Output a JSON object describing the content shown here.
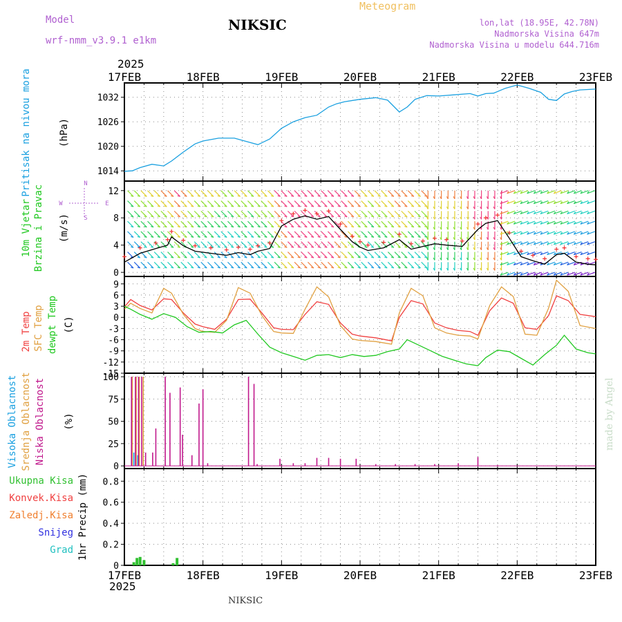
{
  "header": {
    "model_label": "Model",
    "model_name": "wrf-nmm_v3.9.1  e1km",
    "station": "NIKSIC",
    "title": "Meteogram",
    "coords": "lon,lat (18.95E, 42.78N)",
    "elevation": "Nadmorska Visina 647m",
    "model_elevation": "Nadmorska Visina u modelu 644.716m",
    "footer_station": "NIKSIC",
    "credit": "made by Angel",
    "year": "2025"
  },
  "colors": {
    "pressure": "#1aa0e0",
    "t2m": "#f04040",
    "tsfc": "#e0a040",
    "dewpoint": "#20c820",
    "high_cloud": "#1aa0e0",
    "mid_cloud": "#e0a040",
    "low_cloud": "#c0188c",
    "precip": "#30c030",
    "frame": "#000000",
    "grid": "#888888"
  },
  "chart_data": [
    {
      "type": "line",
      "panel": "pressure",
      "ylabel_lines": [
        "Pritisak na nivou mora",
        "(hPa)"
      ],
      "x_ticks": [
        "17FEB",
        "18FEB",
        "19FEB",
        "20FEB",
        "21FEB",
        "22FEB",
        "23FEB"
      ],
      "y_ticks": [
        1014,
        1020,
        1026,
        1032
      ],
      "ylim": [
        1011.5,
        1035.5
      ],
      "grid": true,
      "series": [
        {
          "x": [
            0,
            0.1,
            0.2,
            0.35,
            0.5,
            0.6,
            0.75,
            0.9,
            1.0,
            1.2,
            1.4,
            1.55,
            1.7,
            1.85,
            2.0,
            2.15,
            2.3,
            2.45,
            2.6,
            2.7,
            2.8,
            3.0,
            3.2,
            3.35,
            3.5,
            3.6,
            3.7,
            3.85,
            4.0,
            4.2,
            4.4,
            4.5,
            4.6,
            4.7,
            4.85,
            5.0,
            5.15,
            5.3,
            5.4,
            5.5,
            5.6,
            5.7,
            5.8,
            6.0
          ],
          "y": [
            1013.9,
            1014.0,
            1014.8,
            1015.6,
            1015.2,
            1016.4,
            1018.6,
            1020.6,
            1021.3,
            1022.0,
            1022.0,
            1021.2,
            1020.4,
            1021.8,
            1024.4,
            1026.0,
            1027.0,
            1027.6,
            1029.6,
            1030.4,
            1030.9,
            1031.5,
            1031.9,
            1031.3,
            1028.4,
            1029.6,
            1031.5,
            1032.4,
            1032.3,
            1032.6,
            1032.9,
            1032.3,
            1032.9,
            1033.0,
            1034.2,
            1035.0,
            1034.2,
            1033.2,
            1031.5,
            1031.2,
            1032.8,
            1033.4,
            1033.8,
            1034.0
          ]
        }
      ]
    },
    {
      "type": "line",
      "panel": "wind",
      "ylabel_lines": [
        "10m Vjetar",
        "Brzina i Pravac",
        "(m/s)"
      ],
      "compass_labels": [
        "N",
        "S",
        "W",
        "E"
      ],
      "y_ticks": [
        0,
        4,
        8,
        12
      ],
      "ylim": [
        -0.6,
        13.4
      ],
      "grid": true,
      "series": [
        {
          "name": "",
          "x": [
            0,
            0.2,
            0.4,
            0.55,
            0.6,
            0.75,
            0.9,
            1.1,
            1.3,
            1.45,
            1.6,
            1.7,
            1.85,
            2.0,
            2.15,
            2.3,
            2.45,
            2.6,
            2.75,
            2.9,
            3.0,
            3.1,
            3.3,
            3.5,
            3.65,
            3.8,
            3.95,
            4.1,
            4.3,
            4.5,
            4.6,
            4.75,
            4.9,
            5.05,
            5.2,
            5.35,
            5.5,
            5.6,
            5.75,
            5.9,
            6.0
          ],
          "y": [
            1.5,
            2.8,
            3.5,
            4.0,
            5.2,
            3.9,
            3.1,
            2.8,
            2.5,
            2.9,
            2.6,
            3.1,
            3.5,
            6.8,
            7.8,
            8.3,
            7.8,
            8.2,
            6.3,
            4.5,
            3.7,
            3.2,
            3.6,
            4.8,
            3.4,
            3.8,
            4.2,
            4.0,
            3.8,
            6.3,
            7.2,
            7.6,
            5.0,
            2.3,
            1.7,
            1.2,
            2.6,
            2.8,
            1.5,
            1.2,
            1.1
          ]
        }
      ]
    },
    {
      "type": "line",
      "panel": "temperature",
      "ylabel_lines": [
        "2m Temp",
        "SFC Temp",
        "dewpt Temp",
        "(C)"
      ],
      "y_ticks": [
        9,
        6,
        3,
        0,
        -3,
        -6,
        -9,
        -12,
        -15
      ],
      "ylim": [
        -15,
        11
      ],
      "grid": true,
      "series": [
        {
          "name": "2m Temp",
          "x": [
            0,
            0.08,
            0.2,
            0.35,
            0.5,
            0.6,
            0.75,
            0.9,
            1.0,
            1.15,
            1.3,
            1.45,
            1.6,
            1.75,
            1.9,
            2.0,
            2.15,
            2.3,
            2.45,
            2.6,
            2.75,
            2.9,
            3.0,
            3.2,
            3.4,
            3.5,
            3.65,
            3.8,
            3.95,
            4.1,
            4.25,
            4.4,
            4.5,
            4.65,
            4.8,
            4.95,
            5.1,
            5.25,
            5.4,
            5.5,
            5.65,
            5.8,
            6.0
          ],
          "y": [
            2.8,
            4.8,
            3.2,
            2.0,
            5.0,
            4.8,
            1.2,
            -1.8,
            -2.5,
            -3.2,
            -0.5,
            4.8,
            4.9,
            1.2,
            -2.8,
            -3.2,
            -3.3,
            0.8,
            4.2,
            3.5,
            -1.5,
            -4.5,
            -5.0,
            -5.5,
            -6.3,
            0.0,
            4.5,
            3.6,
            -1.5,
            -2.8,
            -3.5,
            -3.8,
            -4.8,
            1.8,
            5.2,
            3.8,
            -2.8,
            -3.2,
            0.5,
            5.8,
            4.5,
            0.8,
            0.2
          ]
        },
        {
          "name": "SFC Temp",
          "x": [
            0,
            0.08,
            0.2,
            0.35,
            0.5,
            0.6,
            0.75,
            0.9,
            1.0,
            1.15,
            1.3,
            1.45,
            1.6,
            1.75,
            1.9,
            2.0,
            2.15,
            2.3,
            2.45,
            2.6,
            2.75,
            2.9,
            3.0,
            3.2,
            3.4,
            3.5,
            3.65,
            3.8,
            3.95,
            4.1,
            4.25,
            4.4,
            4.5,
            4.65,
            4.8,
            4.95,
            5.1,
            5.25,
            5.4,
            5.5,
            5.65,
            5.8,
            6.0
          ],
          "y": [
            2.2,
            3.8,
            2.4,
            1.2,
            7.8,
            6.5,
            0.8,
            -3.0,
            -3.8,
            -4.0,
            -0.8,
            8.0,
            6.5,
            0.5,
            -3.8,
            -4.2,
            -4.3,
            2.2,
            8.2,
            5.5,
            -2.2,
            -5.8,
            -6.2,
            -6.5,
            -7.2,
            1.2,
            7.8,
            5.8,
            -2.8,
            -4.2,
            -4.8,
            -5.0,
            -5.8,
            3.2,
            8.2,
            5.6,
            -4.5,
            -4.8,
            2.5,
            10.0,
            7.0,
            -2.2,
            -3.0
          ]
        },
        {
          "name": "dewpt Temp",
          "x": [
            0,
            0.08,
            0.2,
            0.35,
            0.5,
            0.65,
            0.8,
            0.95,
            1.1,
            1.25,
            1.4,
            1.55,
            1.7,
            1.85,
            2.0,
            2.15,
            2.3,
            2.45,
            2.6,
            2.75,
            2.9,
            3.05,
            3.2,
            3.35,
            3.5,
            3.6,
            3.75,
            3.9,
            4.05,
            4.2,
            4.35,
            4.5,
            4.6,
            4.75,
            4.9,
            5.05,
            5.2,
            5.35,
            5.5,
            5.6,
            5.75,
            5.9,
            6.0
          ],
          "y": [
            3.0,
            2.2,
            0.8,
            -0.5,
            1.0,
            0.0,
            -2.5,
            -4.0,
            -3.8,
            -4.2,
            -2.0,
            -0.8,
            -4.5,
            -8.0,
            -9.5,
            -10.5,
            -11.5,
            -10.2,
            -10.0,
            -10.8,
            -10.0,
            -10.5,
            -10.2,
            -9.2,
            -8.5,
            -6.0,
            -7.5,
            -9.0,
            -10.5,
            -11.5,
            -12.5,
            -13.0,
            -10.8,
            -8.8,
            -9.2,
            -11.0,
            -12.8,
            -10.0,
            -7.5,
            -4.8,
            -8.5,
            -9.5,
            -9.8
          ]
        }
      ]
    },
    {
      "type": "bar",
      "panel": "cloud",
      "ylabel_lines": [
        "Visoka Oblacnost",
        "Srednja Oblacnost",
        "Niska Oblacnost",
        "(%)"
      ],
      "y_ticks": [
        0,
        25,
        50,
        75,
        100
      ],
      "ylim": [
        -3,
        104
      ],
      "series": [
        {
          "name": "Visoka Oblacnost",
          "x": [
            0.12,
            0.17
          ],
          "values": [
            15,
            12
          ]
        },
        {
          "name": "Srednja Oblacnost",
          "x": [
            0.1,
            0.15,
            0.19,
            0.24
          ],
          "values": [
            100,
            100,
            100,
            100
          ]
        },
        {
          "name": "Niska Oblacnost",
          "x": [
            0.09,
            0.14,
            0.18,
            0.22,
            0.27,
            0.36,
            0.4,
            0.52,
            0.58,
            0.71,
            0.74,
            0.86,
            0.95,
            1.0,
            1.06,
            1.58,
            1.65,
            1.69,
            1.98,
            2.15,
            2.3,
            2.45,
            2.6,
            2.75,
            2.95,
            3.2,
            3.45,
            3.7,
            3.95,
            4.25,
            4.5,
            4.75
          ],
          "values": [
            100,
            100,
            100,
            100,
            15,
            15,
            42,
            100,
            82,
            88,
            35,
            12,
            70,
            86,
            3,
            100,
            92,
            2,
            8,
            3,
            3,
            9,
            9,
            8,
            8,
            2,
            2,
            2,
            2,
            3,
            10,
            1
          ]
        }
      ]
    },
    {
      "type": "bar",
      "panel": "precip",
      "ylabel_lines": [
        "1hr Precip (mm)"
      ],
      "legend": [
        "Ukupna Kisa",
        "Konvek.Kisa",
        "Zaledj.Kisa",
        "Snijeg",
        "Grad"
      ],
      "y_ticks": [
        0,
        0.2,
        0.4,
        0.6,
        0.8
      ],
      "ylim": [
        0,
        0.92
      ],
      "series": [
        {
          "name": "Ukupna Kisa",
          "x": [
            0.12,
            0.16,
            0.2,
            0.25,
            0.62,
            0.67
          ],
          "values": [
            0.03,
            0.07,
            0.08,
            0.05,
            0.02,
            0.07
          ]
        }
      ]
    }
  ]
}
